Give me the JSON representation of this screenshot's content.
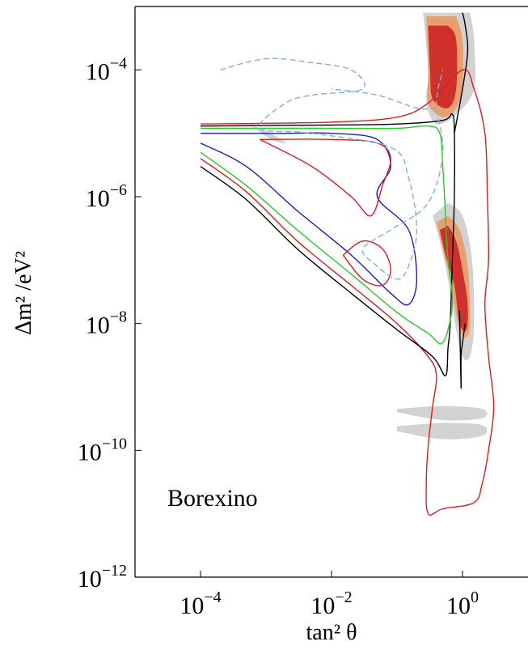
{
  "chart_data": {
    "type": "contour",
    "annotation": "Borexino",
    "xlabel": "tan² θ",
    "ylabel": "Δm² /eV²",
    "x_scale": "log",
    "y_scale": "log",
    "xlim": [
      1e-05,
      10
    ],
    "ylim": [
      1e-12,
      0.001
    ],
    "x_ticks": [
      {
        "value": 0.0001,
        "base": "10",
        "exp": "−4"
      },
      {
        "value": 0.01,
        "base": "10",
        "exp": "−2"
      },
      {
        "value": 1,
        "base": "10",
        "exp": "0"
      }
    ],
    "y_ticks": [
      {
        "value": 1e-12,
        "base": "10",
        "exp": "−12"
      },
      {
        "value": 1e-10,
        "base": "10",
        "exp": "−10"
      },
      {
        "value": 1e-08,
        "base": "10",
        "exp": "−8"
      },
      {
        "value": 1e-06,
        "base": "10",
        "exp": "−6"
      },
      {
        "value": 0.0001,
        "base": "10",
        "exp": "−4"
      }
    ],
    "colors": {
      "fill_red": "#d0302a",
      "fill_orange": "#e8a070",
      "fill_gray": "#d2d2d2",
      "line_red": "#e21a1a",
      "line_green": "#22cc22",
      "line_blue": "#1a1acc",
      "line_black": "#000000",
      "line_lightblue": "#7fb0dd",
      "line_yellowgreen": "#99cc33"
    },
    "contours": [
      {
        "color": "line_red",
        "style": "solid",
        "points": [
          [
            0.0001,
            4e-06
          ],
          [
            0.0005,
            1.2e-06
          ],
          [
            0.003,
            2e-07
          ],
          [
            0.02,
            4e-08
          ],
          [
            0.1,
            1e-08
          ],
          [
            0.3,
            3e-09
          ],
          [
            0.4,
            1.5e-09
          ],
          [
            0.35,
            5e-10
          ],
          [
            0.3,
            1.2e-10
          ],
          [
            0.28,
            3e-11
          ],
          [
            0.3,
            1e-11
          ],
          [
            0.5,
            1.2e-11
          ],
          [
            1.5,
            1.5e-11
          ],
          [
            2,
            3e-11
          ],
          [
            2.5,
            1e-10
          ],
          [
            3,
            5e-10
          ],
          [
            2.5,
            3e-09
          ],
          [
            2.2,
            2e-08
          ],
          [
            2.5,
            1e-07
          ],
          [
            2.4,
            1e-06
          ],
          [
            2.2,
            1e-05
          ],
          [
            1.5,
            5e-05
          ],
          [
            1.0,
            0.0001
          ],
          [
            0.3,
            3e-05
          ],
          [
            0.1,
            1.8e-05
          ],
          [
            0.01,
            1.5e-05
          ],
          [
            0.0001,
            1.4e-05
          ]
        ]
      },
      {
        "color": "line_black",
        "style": "solid",
        "points": [
          [
            0.0001,
            3e-06
          ],
          [
            0.0005,
            9e-07
          ],
          [
            0.003,
            1.5e-07
          ],
          [
            0.02,
            3e-08
          ],
          [
            0.1,
            8e-09
          ],
          [
            0.35,
            3e-09
          ],
          [
            0.55,
            1.5e-09
          ],
          [
            0.6,
            4e-09
          ],
          [
            0.65,
            1e-08
          ],
          [
            0.7,
            1e-07
          ],
          [
            0.75,
            1e-06
          ],
          [
            0.75,
            1e-05
          ],
          [
            0.7,
            2e-05
          ],
          [
            0.5,
            1.6e-05
          ],
          [
            0.1,
            1.4e-05
          ],
          [
            0.01,
            1.35e-05
          ],
          [
            0.0001,
            1.3e-05
          ]
        ]
      },
      {
        "color": "line_black",
        "style": "solid",
        "points": [
          [
            0.75,
            1e-05
          ],
          [
            1.0,
            5e-05
          ],
          [
            1.2,
            0.0002
          ],
          [
            1.1,
            0.0005
          ],
          [
            1.0,
            0.0008
          ]
        ]
      },
      {
        "color": "line_black",
        "style": "solid",
        "points": [
          [
            0.9,
            1.6e-08
          ],
          [
            0.95,
            1e-09
          ],
          [
            0.95,
            3e-09
          ],
          [
            1.0,
            5e-09
          ],
          [
            1.1,
            1e-08
          ]
        ]
      },
      {
        "color": "line_green",
        "style": "solid",
        "points": [
          [
            0.0001,
            5e-06
          ],
          [
            0.0005,
            1.5e-06
          ],
          [
            0.003,
            3e-07
          ],
          [
            0.02,
            6e-08
          ],
          [
            0.1,
            1.5e-08
          ],
          [
            0.3,
            7e-09
          ],
          [
            0.5,
            5e-09
          ],
          [
            0.7,
            2e-08
          ],
          [
            0.6,
            1e-07
          ],
          [
            0.55,
            5e-07
          ],
          [
            0.5,
            3e-06
          ],
          [
            0.45,
            1e-05
          ],
          [
            0.3,
            1.3e-05
          ],
          [
            0.1,
            1.2e-05
          ],
          [
            0.01,
            1.2e-05
          ],
          [
            0.0001,
            1.2e-05
          ]
        ]
      },
      {
        "color": "line_blue",
        "style": "solid",
        "points": [
          [
            0.0001,
            7e-06
          ],
          [
            0.0005,
            3e-06
          ],
          [
            0.003,
            6e-07
          ],
          [
            0.02,
            1.2e-07
          ],
          [
            0.08,
            3e-08
          ],
          [
            0.15,
            2e-08
          ],
          [
            0.2,
            5e-08
          ],
          [
            0.15,
            3e-07
          ],
          [
            0.05,
            1e-06
          ],
          [
            0.08,
            3e-06
          ],
          [
            0.05,
            8e-06
          ],
          [
            0.01,
            1e-05
          ],
          [
            0.002,
            1e-05
          ],
          [
            0.0001,
            1e-05
          ]
        ]
      },
      {
        "color": "line_red",
        "style": "solid",
        "points": [
          [
            0.0008,
            8e-06
          ],
          [
            0.005,
            3e-06
          ],
          [
            0.02,
            1e-06
          ],
          [
            0.04,
            5e-07
          ],
          [
            0.06,
            1.5e-06
          ],
          [
            0.08,
            4e-06
          ],
          [
            0.05,
            7e-06
          ],
          [
            0.01,
            8e-06
          ],
          [
            0.0008,
            8e-06
          ]
        ]
      },
      {
        "color": "line_red",
        "style": "solid",
        "points": [
          [
            0.015,
            1.2e-07
          ],
          [
            0.03,
            5e-08
          ],
          [
            0.06,
            4e-08
          ],
          [
            0.08,
            7e-08
          ],
          [
            0.06,
            1.5e-07
          ],
          [
            0.03,
            2e-07
          ],
          [
            0.015,
            1.2e-07
          ]
        ]
      },
      {
        "color": "line_lightblue",
        "style": "dashed",
        "points": [
          [
            0.0002,
            0.0001
          ],
          [
            0.001,
            0.00015
          ],
          [
            0.005,
            0.00013
          ],
          [
            0.02,
            0.0001
          ],
          [
            0.03,
            5e-05
          ],
          [
            0.005,
            4e-05
          ],
          [
            0.002,
            3e-05
          ],
          [
            0.0008,
            1.2e-05
          ],
          [
            0.005,
            1e-05
          ],
          [
            0.08,
            6e-06
          ],
          [
            0.15,
            2e-06
          ],
          [
            0.2,
            3e-07
          ],
          [
            0.15,
            8e-08
          ],
          [
            0.1,
            5e-08
          ],
          [
            0.05,
            8e-08
          ],
          [
            0.03,
            1.5e-07
          ],
          [
            0.08,
            3e-07
          ],
          [
            0.3,
            8e-07
          ],
          [
            0.5,
            5e-06
          ],
          [
            0.4,
            3e-05
          ],
          [
            0.5,
            0.0001
          ]
        ]
      },
      {
        "color": "line_lightblue",
        "style": "dashed",
        "points": [
          [
            0.4,
            2.5e-05
          ],
          [
            0.2,
            2.5e-05
          ],
          [
            0.05,
            4e-05
          ],
          [
            0.01,
            5e-05
          ]
        ]
      }
    ],
    "filled_regions": [
      {
        "color": "fill_gray",
        "points": [
          [
            0.25,
            0.0008
          ],
          [
            0.3,
            0.0001
          ],
          [
            0.28,
            3e-05
          ],
          [
            0.4,
            1.4e-05
          ],
          [
            0.8,
            2e-05
          ],
          [
            1.5,
            5e-05
          ],
          [
            1.5,
            0.0003
          ],
          [
            1.3,
            0.0008
          ]
        ]
      },
      {
        "color": "fill_orange",
        "points": [
          [
            0.28,
            0.0007
          ],
          [
            0.3,
            0.0001
          ],
          [
            0.3,
            3e-05
          ],
          [
            0.5,
            1.8e-05
          ],
          [
            0.8,
            2.5e-05
          ],
          [
            1.0,
            6e-05
          ],
          [
            1.0,
            0.0003
          ],
          [
            0.8,
            0.0007
          ]
        ]
      },
      {
        "color": "fill_red",
        "points": [
          [
            0.3,
            0.0005
          ],
          [
            0.32,
            0.0001
          ],
          [
            0.35,
            3.5e-05
          ],
          [
            0.6,
            2.5e-05
          ],
          [
            0.8,
            5e-05
          ],
          [
            0.8,
            0.0003
          ],
          [
            0.6,
            0.0005
          ]
        ]
      },
      {
        "color": "fill_gray",
        "points": [
          [
            0.35,
            5e-07
          ],
          [
            0.45,
            2e-07
          ],
          [
            0.6,
            5e-08
          ],
          [
            0.8,
            8e-09
          ],
          [
            1.0,
            3e-09
          ],
          [
            1.3,
            3e-09
          ],
          [
            1.5,
            1e-08
          ],
          [
            1.4,
            1e-07
          ],
          [
            1.0,
            5e-07
          ],
          [
            0.6,
            8e-07
          ]
        ]
      },
      {
        "color": "fill_orange",
        "points": [
          [
            0.4,
            4e-07
          ],
          [
            0.5,
            1.5e-07
          ],
          [
            0.65,
            5e-08
          ],
          [
            0.85,
            1e-08
          ],
          [
            1.1,
            6e-09
          ],
          [
            1.3,
            1e-08
          ],
          [
            1.2,
            8e-08
          ],
          [
            0.9,
            3e-07
          ],
          [
            0.6,
            5e-07
          ]
        ]
      },
      {
        "color": "fill_red",
        "points": [
          [
            0.45,
            3e-07
          ],
          [
            0.55,
            1.2e-07
          ],
          [
            0.75,
            4e-08
          ],
          [
            0.9,
            1e-08
          ],
          [
            1.15,
            8e-09
          ],
          [
            1.2,
            2e-08
          ],
          [
            1.0,
            7e-08
          ],
          [
            0.8,
            2e-07
          ],
          [
            0.6,
            3.5e-07
          ]
        ]
      },
      {
        "color": "fill_gray",
        "points": [
          [
            0.0006,
            1.3e-05
          ],
          [
            0.001,
            1.1e-05
          ],
          [
            0.002,
            7e-06
          ],
          [
            0.0012,
            8e-06
          ],
          [
            0.0006,
            1.3e-05
          ]
        ]
      },
      {
        "color": "fill_gray",
        "points": [
          [
            0.1,
            4e-10
          ],
          [
            0.5,
            3e-10
          ],
          [
            2,
            3.2e-10
          ],
          [
            2,
            4.5e-10
          ],
          [
            0.5,
            5e-10
          ],
          [
            0.1,
            4.5e-10
          ]
        ]
      },
      {
        "color": "fill_gray",
        "points": [
          [
            0.1,
            2e-10
          ],
          [
            0.5,
            1.5e-10
          ],
          [
            2,
            1.7e-10
          ],
          [
            2,
            2.5e-10
          ],
          [
            0.5,
            2.7e-10
          ],
          [
            0.1,
            2.4e-10
          ]
        ]
      }
    ]
  }
}
